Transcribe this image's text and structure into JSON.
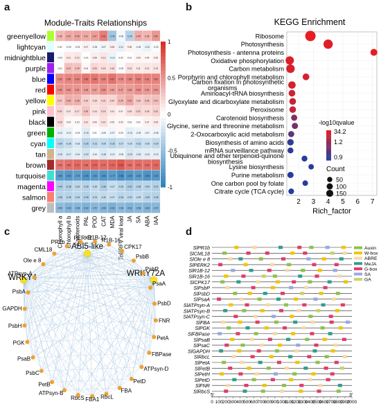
{
  "panel_letters": {
    "a": "a",
    "b": "b",
    "c": "c",
    "d": "d"
  },
  "chart_data": [
    {
      "type": "heatmap",
      "panel": "a",
      "title": "Module-Traits Relationships",
      "modules": [
        "greenyellow",
        "lightcyan",
        "midnightblue",
        "purple",
        "blue",
        "red",
        "yellow",
        "pink",
        "black",
        "green",
        "cyan",
        "tan",
        "brown",
        "turquoise",
        "magenta",
        "salmon",
        "grey"
      ],
      "module_colors": [
        "#adff2f",
        "#e0ffff",
        "#191970",
        "#a020f0",
        "#0000ff",
        "#ff0000",
        "#ffff00",
        "#ffc0cb",
        "#000000",
        "#00b000",
        "#00ffff",
        "#d2b48c",
        "#a52a2a",
        "#40e0d0",
        "#ff00ff",
        "#fa8072",
        "#bebebe"
      ],
      "traits": [
        "Chlorophyll a",
        "Chlorophyll b",
        "Carotenoids",
        "PAL",
        "POD",
        "CAT",
        "MDA",
        "ToBRFV viral load",
        "JA",
        "SA",
        "ABA",
        "IAA"
      ],
      "values": [
        [
          0.36,
          0.42,
          0.45,
          0.41,
          0.47,
          0.63,
          -0.46,
          -0.06,
          -0.36,
          0.4,
          0.36,
          0.5
        ],
        [
          0.0,
          -0.03,
          -0.03,
          0.07,
          -0.06,
          -0.07,
          0.08,
          -0.11,
          0.06,
          -0.06,
          -0.1,
          -0.03
        ],
        [
          -0.03,
          0.11,
          0.12,
          -0.01,
          0.08,
          0.12,
          -0.1,
          0.02,
          0.01,
          0.05,
          0.04,
          0.06
        ],
        [
          -0.01,
          0.31,
          0.29,
          0.04,
          0.2,
          0.16,
          0.16,
          -0.03,
          0.14,
          0.11,
          0.12,
          0.13
        ],
        [
          0.55,
          0.58,
          0.6,
          0.65,
          0.66,
          0.6,
          0.67,
          0.55,
          0.58,
          0.62,
          0.61,
          0.6
        ],
        [
          0.54,
          0.52,
          0.51,
          0.48,
          0.47,
          0.53,
          0.45,
          0.47,
          0.48,
          0.53,
          0.5,
          0.51
        ],
        [
          0.27,
          0.39,
          0.38,
          0.23,
          0.18,
          0.21,
          0.2,
          0.34,
          0.42,
          0.26,
          0.29,
          0.31
        ],
        [
          0.2,
          0.12,
          0.17,
          0.29,
          0.14,
          0.19,
          0.11,
          0.07,
          0.16,
          0.21,
          0.18,
          0.22
        ],
        [
          0.18,
          0.04,
          0.03,
          0.12,
          0.06,
          0.14,
          0.05,
          0.04,
          0.02,
          0.02,
          0.07,
          0.09
        ],
        [
          -0.12,
          -0.1,
          -0.03,
          -0.15,
          0.01,
          -0.05,
          -0.07,
          0.03,
          -0.13,
          -0.09,
          -0.07,
          -0.08
        ],
        [
          -0.34,
          -0.28,
          -0.18,
          -0.35,
          -0.31,
          -0.29,
          -0.33,
          -0.27,
          -0.25,
          -0.31,
          -0.26,
          -0.3
        ],
        [
          -0.19,
          -0.17,
          -0.14,
          -0.22,
          -0.1,
          -0.18,
          -0.12,
          -0.09,
          -0.2,
          -0.15,
          -0.14,
          -0.13
        ],
        [
          0.66,
          0.69,
          0.72,
          0.68,
          0.74,
          0.7,
          0.73,
          0.8,
          0.68,
          0.71,
          0.69,
          0.72
        ],
        [
          -0.8,
          -0.82,
          -0.78,
          -0.85,
          -0.81,
          -0.84,
          -0.79,
          -0.88,
          -0.83,
          -0.8,
          -0.86,
          -0.82
        ],
        [
          -0.4,
          -0.38,
          -0.32,
          -0.35,
          -0.3,
          -0.39,
          -0.27,
          -0.33,
          -0.41,
          -0.36,
          -0.34,
          -0.37
        ],
        [
          -0.36,
          -0.35,
          -0.33,
          -0.38,
          -0.31,
          -0.3,
          -0.27,
          -0.34,
          -0.32,
          -0.29,
          -0.35,
          -0.36
        ],
        [
          -0.55,
          -0.6,
          -0.58,
          -0.62,
          -0.57,
          -0.59,
          -0.63,
          -0.56,
          -0.61,
          -0.58,
          -0.6,
          -0.57
        ]
      ],
      "colorbar_ticks": [
        "1",
        "0.5",
        "0",
        "-0.5",
        "-1"
      ]
    },
    {
      "type": "scatter",
      "panel": "b",
      "title": "KEGG Enrichment",
      "xlabel": "Rich_factor",
      "x_ticks": [
        "2",
        "3",
        "4",
        "5",
        "6",
        "7"
      ],
      "xlim": [
        1.2,
        7.3
      ],
      "terms": [
        "Ribosome",
        "Photosynthesis",
        "Photosynthesis - antenna proteins",
        "Oxidative phosphorylation",
        "Carbon metabolism",
        "Porphyrin and chlorophyll metabolism",
        "Carbon fixation in photosynthetic organisms",
        "Aminoacyl-tRNA biosynthesis",
        "Glyoxylate and dicarboxylate metabolism",
        "Peroxisome",
        "Carotenoid biosynthesis",
        "Glycine, serine and threonine metabolism",
        "2-Oxocarboxylic acid metabolism",
        "Biosynthesis of amino acids",
        "mRNA surveillance pathway",
        "Ubiquinone and other terpenoid-quinone biosynthesis",
        "Lysine biosynthesis",
        "Purine metabolism",
        "One carbon pool by folate",
        "Citrate cycle (TCA cycle)"
      ],
      "rich_factor": [
        2.8,
        4.0,
        7.1,
        1.4,
        1.45,
        2.5,
        1.55,
        1.55,
        1.6,
        1.6,
        1.7,
        1.75,
        1.5,
        1.45,
        1.45,
        2.4,
        2.85,
        1.45,
        2.45,
        1.5
      ],
      "neglog10_q": [
        34.2,
        30.0,
        33.0,
        28.0,
        27.0,
        25.0,
        24.0,
        22.0,
        20.0,
        18.0,
        6.0,
        4.0,
        2.5,
        1.2,
        1.1,
        1.0,
        0.9,
        1.0,
        0.95,
        0.9
      ],
      "count": [
        150,
        110,
        45,
        80,
        85,
        40,
        55,
        40,
        40,
        38,
        30,
        30,
        28,
        35,
        25,
        25,
        18,
        30,
        20,
        22
      ],
      "legend_q_title": "-log10qvalue",
      "legend_q_ticks": [
        "34.2",
        "1.2",
        "0.9"
      ],
      "legend_count_title": "Count",
      "legend_count_values": [
        "50",
        "100",
        "150"
      ]
    },
    {
      "type": "network",
      "panel": "c",
      "hubs": [
        "ABI5-like",
        "WRKY4",
        "WRKY72A"
      ],
      "nodes": [
        "Ole e 8",
        "CML18",
        "PR1b",
        "PERK2",
        "R1B-12",
        "R1B-16",
        "CPK17",
        "PsbB",
        "PsbP",
        "PsaA",
        "PsbD",
        "FNR",
        "PetA",
        "FBPase",
        "ATPsyn-D",
        "PetD",
        "FBA",
        "RbcL",
        "FBA1",
        "RbcS",
        "ATPsyn-B",
        "PetB",
        "PsbC",
        "PsaB",
        "PGK",
        "PsbH",
        "GAPDH",
        "PsbA",
        "ATPsyn-A"
      ]
    },
    {
      "type": "gene_promoter_map",
      "panel": "d",
      "genes": [
        "SlPR1b",
        "SlCML18",
        "SlOle e 8",
        "SlPERK2",
        "SlR1B-12",
        "SlR1B-16",
        "SlCPK17",
        "SlPsbP",
        "SlPsbD",
        "SlPsaA",
        "SlATPsyn-A",
        "SlATPsyn-B",
        "SlATPsyn-C",
        "SlFBA",
        "SlPGK",
        "SlFBPase",
        "SlPsaB",
        "SlPsaC",
        "SlGAPDH",
        "SlRbcL",
        "SlPetA",
        "SlPetB",
        "SlPetH",
        "SlPetD",
        "SlFNR",
        "SlRbcS"
      ],
      "legend": [
        "Auxin",
        "W-box",
        "ABRE",
        "MeJA",
        "G-box",
        "SA",
        "GA"
      ],
      "legend_colors": [
        "#8bc34a",
        "#f2c500",
        "#f7d9a6",
        "#2e9e8f",
        "#e23b6b",
        "#9aa8e8",
        "#c9d36b"
      ],
      "x_ticks": [
        "0",
        "100",
        "200",
        "300",
        "400",
        "500",
        "600",
        "700",
        "800",
        "900",
        "1000",
        "1100",
        "1200",
        "1300",
        "1400",
        "1500",
        "1600",
        "1700",
        "1800",
        "1900",
        "2000"
      ],
      "xlim": [
        0,
        2000
      ],
      "end_labels": [
        "5'",
        "3'"
      ],
      "elements": [
        [
          [
            350,
            1
          ],
          [
            610,
            2
          ],
          [
            980,
            3
          ],
          [
            1250,
            4
          ],
          [
            1420,
            0
          ],
          [
            1650,
            5
          ],
          [
            1880,
            1
          ]
        ],
        [
          [
            180,
            0
          ],
          [
            520,
            4
          ],
          [
            790,
            4
          ],
          [
            1150,
            1
          ],
          [
            1330,
            4
          ],
          [
            1720,
            6
          ],
          [
            1900,
            2
          ]
        ],
        [
          [
            260,
            2
          ],
          [
            410,
            3
          ],
          [
            700,
            0
          ],
          [
            1020,
            4
          ],
          [
            1380,
            5
          ],
          [
            1600,
            1
          ],
          [
            1850,
            3
          ]
        ],
        [
          [
            120,
            4
          ],
          [
            480,
            1
          ],
          [
            860,
            2
          ],
          [
            1100,
            0
          ],
          [
            1460,
            4
          ],
          [
            1780,
            4
          ]
        ],
        [
          [
            300,
            5
          ],
          [
            560,
            3
          ],
          [
            820,
            4
          ],
          [
            1080,
            2
          ],
          [
            1300,
            0
          ],
          [
            1540,
            1
          ],
          [
            1760,
            5
          ]
        ],
        [
          [
            200,
            1
          ],
          [
            450,
            4
          ],
          [
            740,
            6
          ],
          [
            900,
            0
          ],
          [
            1260,
            3
          ],
          [
            1500,
            4
          ],
          [
            1820,
            2
          ]
        ],
        [
          [
            150,
            0
          ],
          [
            380,
            3
          ],
          [
            660,
            2
          ],
          [
            940,
            1
          ],
          [
            1170,
            4
          ],
          [
            1400,
            0
          ],
          [
            1680,
            3
          ],
          [
            1910,
            1
          ]
        ],
        [
          [
            220,
            2
          ],
          [
            590,
            4
          ],
          [
            870,
            1
          ],
          [
            1130,
            5
          ],
          [
            1350,
            2
          ],
          [
            1620,
            4
          ]
        ],
        [
          [
            330,
            0
          ],
          [
            540,
            1
          ],
          [
            760,
            3
          ],
          [
            1010,
            4
          ],
          [
            1290,
            6
          ],
          [
            1560,
            1
          ],
          [
            1800,
            0
          ]
        ],
        [
          [
            100,
            4
          ],
          [
            420,
            2
          ],
          [
            680,
            0
          ],
          [
            950,
            3
          ],
          [
            1200,
            1
          ],
          [
            1480,
            5
          ],
          [
            1740,
            2
          ]
        ],
        [
          [
            270,
            1
          ],
          [
            500,
            4
          ],
          [
            800,
            2
          ],
          [
            1060,
            0
          ],
          [
            1320,
            4
          ],
          [
            1590,
            3
          ],
          [
            1870,
            4
          ]
        ],
        [
          [
            190,
            3
          ],
          [
            460,
            0
          ],
          [
            720,
            1
          ],
          [
            990,
            4
          ],
          [
            1240,
            2
          ],
          [
            1520,
            6
          ],
          [
            1790,
            1
          ]
        ],
        [
          [
            340,
            4
          ],
          [
            620,
            2
          ],
          [
            880,
            5
          ],
          [
            1140,
            1
          ],
          [
            1410,
            0
          ],
          [
            1700,
            4
          ]
        ],
        [
          [
            160,
            2
          ],
          [
            400,
            1
          ],
          [
            650,
            4
          ],
          [
            920,
            0
          ],
          [
            1190,
            3
          ],
          [
            1440,
            2
          ],
          [
            1710,
            4
          ],
          [
            1940,
            5
          ]
        ],
        [
          [
            240,
            0
          ],
          [
            510,
            3
          ],
          [
            780,
            1
          ],
          [
            1040,
            4
          ],
          [
            1310,
            2
          ],
          [
            1580,
            0
          ],
          [
            1840,
            1
          ]
        ],
        [
          [
            110,
            5
          ],
          [
            370,
            4
          ],
          [
            630,
            0
          ],
          [
            900,
            2
          ],
          [
            1160,
            1
          ],
          [
            1430,
            4
          ],
          [
            1690,
            3
          ]
        ],
        [
          [
            290,
            1
          ],
          [
            570,
            2
          ],
          [
            830,
            4
          ],
          [
            1090,
            3
          ],
          [
            1360,
            0
          ],
          [
            1610,
            1
          ],
          [
            1890,
            4
          ]
        ],
        [
          [
            210,
            4
          ],
          [
            440,
            0
          ],
          [
            710,
            2
          ],
          [
            970,
            1
          ],
          [
            1230,
            5
          ],
          [
            1490,
            4
          ],
          [
            1770,
            2
          ]
        ],
        [
          [
            130,
            3
          ],
          [
            390,
            1
          ],
          [
            670,
            4
          ],
          [
            930,
            0
          ],
          [
            1210,
            2
          ],
          [
            1470,
            3
          ],
          [
            1730,
            1
          ]
        ],
        [
          [
            310,
            2
          ],
          [
            580,
            4
          ],
          [
            850,
            1
          ],
          [
            1120,
            3
          ],
          [
            1390,
            4
          ],
          [
            1640,
            0
          ],
          [
            1900,
            2
          ]
        ],
        [
          [
            170,
            0
          ],
          [
            430,
            2
          ],
          [
            690,
            3
          ],
          [
            960,
            4
          ],
          [
            1220,
            1
          ],
          [
            1510,
            0
          ],
          [
            1780,
            4
          ]
        ],
        [
          [
            260,
            4
          ],
          [
            530,
            1
          ],
          [
            810,
            0
          ],
          [
            1070,
            2
          ],
          [
            1340,
            3
          ],
          [
            1630,
            4
          ],
          [
            1860,
            6
          ]
        ],
        [
          [
            140,
            1
          ],
          [
            410,
            4
          ],
          [
            640,
            2
          ],
          [
            910,
            5
          ],
          [
            1180,
            0
          ],
          [
            1450,
            1
          ],
          [
            1720,
            4
          ]
        ],
        [
          [
            320,
            3
          ],
          [
            600,
            0
          ],
          [
            870,
            4
          ],
          [
            1130,
            1
          ],
          [
            1400,
            2
          ],
          [
            1660,
            4
          ]
        ],
        [
          [
            230,
            2
          ],
          [
            490,
            4
          ],
          [
            750,
            1
          ],
          [
            1030,
            0
          ],
          [
            1280,
            4
          ],
          [
            1550,
            2
          ],
          [
            1830,
            3
          ]
        ],
        [
          [
            200,
            4
          ],
          [
            470,
            3
          ],
          [
            730,
            0
          ],
          [
            1000,
            2
          ],
          [
            1270,
            1
          ],
          [
            1530,
            4
          ],
          [
            1810,
            0
          ]
        ]
      ]
    }
  ]
}
